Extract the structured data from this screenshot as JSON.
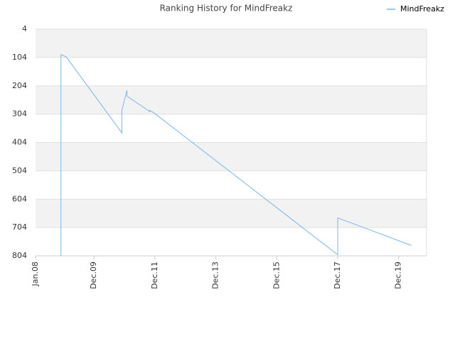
{
  "chart_data": {
    "type": "line",
    "title": "Ranking History for MindFreakz",
    "x": [
      "2008-11",
      "2008-11",
      "2009-01",
      "2010-11",
      "2010-11",
      "2011-01",
      "2011-01",
      "2011-10",
      "2011-10",
      "2011-12",
      "2017-12",
      "2017-12",
      "2020-05"
    ],
    "series": [
      {
        "name": "MindFreakz",
        "color": "#7cb5ec",
        "values": [
          804,
          94,
          101,
          370,
          290,
          220,
          240,
          295,
          290,
          302,
          800,
          670,
          767
        ]
      }
    ],
    "xlim": [
      "2008-01",
      "2020-11"
    ],
    "xticks": [
      {
        "value": "2008-01",
        "label": "Jan.08"
      },
      {
        "value": "2009-12",
        "label": "Dec.09"
      },
      {
        "value": "2011-12",
        "label": "Dec.11"
      },
      {
        "value": "2013-12",
        "label": "Dec.13"
      },
      {
        "value": "2015-12",
        "label": "Dec.15"
      },
      {
        "value": "2017-12",
        "label": "Dec.17"
      },
      {
        "value": "2019-12",
        "label": "Dec.19"
      }
    ],
    "ylim": [
      4,
      804
    ],
    "yticks": [
      4,
      104,
      204,
      304,
      404,
      504,
      604,
      704,
      804
    ],
    "y_inverted": true,
    "grid": true,
    "legend": "top-right"
  }
}
